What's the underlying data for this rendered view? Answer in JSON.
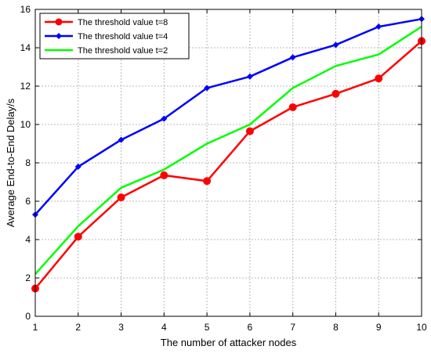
{
  "chart_data": {
    "type": "line",
    "title": "",
    "xlabel": "The  number of attacker nodes",
    "ylabel": "Average End-to-End Delay/s",
    "xlim": [
      1,
      10
    ],
    "ylim": [
      0,
      16
    ],
    "x_ticks": [
      1,
      2,
      3,
      4,
      5,
      6,
      7,
      8,
      9,
      10
    ],
    "y_ticks": [
      0,
      2,
      4,
      6,
      8,
      10,
      12,
      14,
      16
    ],
    "grid": true,
    "legend_position": "top-left",
    "x": [
      1,
      2,
      3,
      4,
      5,
      6,
      7,
      8,
      9,
      10
    ],
    "series": [
      {
        "name": "The threshold value t=8",
        "color": "#ff0000",
        "marker": "circle",
        "values": [
          1.45,
          4.15,
          6.2,
          7.35,
          7.05,
          9.65,
          10.9,
          11.6,
          12.4,
          14.35
        ]
      },
      {
        "name": "The threshold value t=4",
        "color": "#0000ff",
        "marker": "diamond",
        "values": [
          5.3,
          7.8,
          9.2,
          10.3,
          11.9,
          12.5,
          13.5,
          14.15,
          15.1,
          15.5
        ]
      },
      {
        "name": "The threshold value t=2",
        "color": "#00ff00",
        "marker": "none",
        "values": [
          2.2,
          4.7,
          6.7,
          7.65,
          9.0,
          10.0,
          11.9,
          13.05,
          13.65,
          15.1
        ]
      }
    ]
  }
}
